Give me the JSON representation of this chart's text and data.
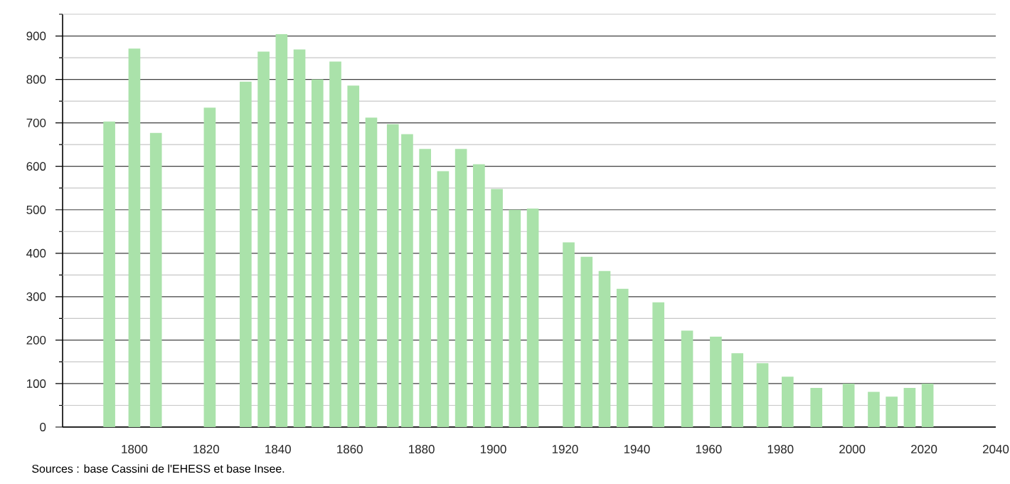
{
  "chart_data": {
    "type": "bar",
    "x": [
      1793,
      1800,
      1806,
      1821,
      1831,
      1836,
      1841,
      1846,
      1851,
      1856,
      1861,
      1866,
      1872,
      1876,
      1881,
      1886,
      1891,
      1896,
      1901,
      1906,
      1911,
      1921,
      1926,
      1931,
      1936,
      1946,
      1954,
      1962,
      1968,
      1975,
      1982,
      1990,
      1999,
      2006,
      2011,
      2016,
      2021
    ],
    "values": [
      703,
      871,
      677,
      735,
      795,
      864,
      904,
      869,
      800,
      841,
      786,
      712,
      697,
      674,
      640,
      589,
      640,
      605,
      548,
      500,
      503,
      425,
      392,
      359,
      318,
      287,
      222,
      208,
      170,
      147,
      116,
      90,
      100,
      81,
      70,
      90,
      100
    ],
    "color": "#aae2aa",
    "xlim": [
      1780,
      2040
    ],
    "xticks": [
      1800,
      1820,
      1840,
      1860,
      1880,
      1900,
      1920,
      1940,
      1960,
      1980,
      2000,
      2020,
      2040
    ],
    "ylim": [
      0,
      950
    ],
    "yticks": [
      0,
      {
        "value": 50,
        "label": null
      },
      100,
      {
        "value": 150,
        "label": null
      },
      200,
      {
        "value": 250,
        "label": null
      },
      300,
      {
        "value": 350,
        "label": null
      },
      400,
      {
        "value": 450,
        "label": null
      },
      500,
      {
        "value": 550,
        "label": null
      },
      600,
      {
        "value": 650,
        "label": null
      },
      700,
      {
        "value": 750,
        "label": null
      },
      800,
      {
        "value": 850,
        "label": null
      },
      900,
      {
        "value": 950,
        "label": null
      }
    ],
    "grid": "y",
    "annotations": [
      "Sources : base Cassini de l'EHESS et base Insee."
    ]
  }
}
